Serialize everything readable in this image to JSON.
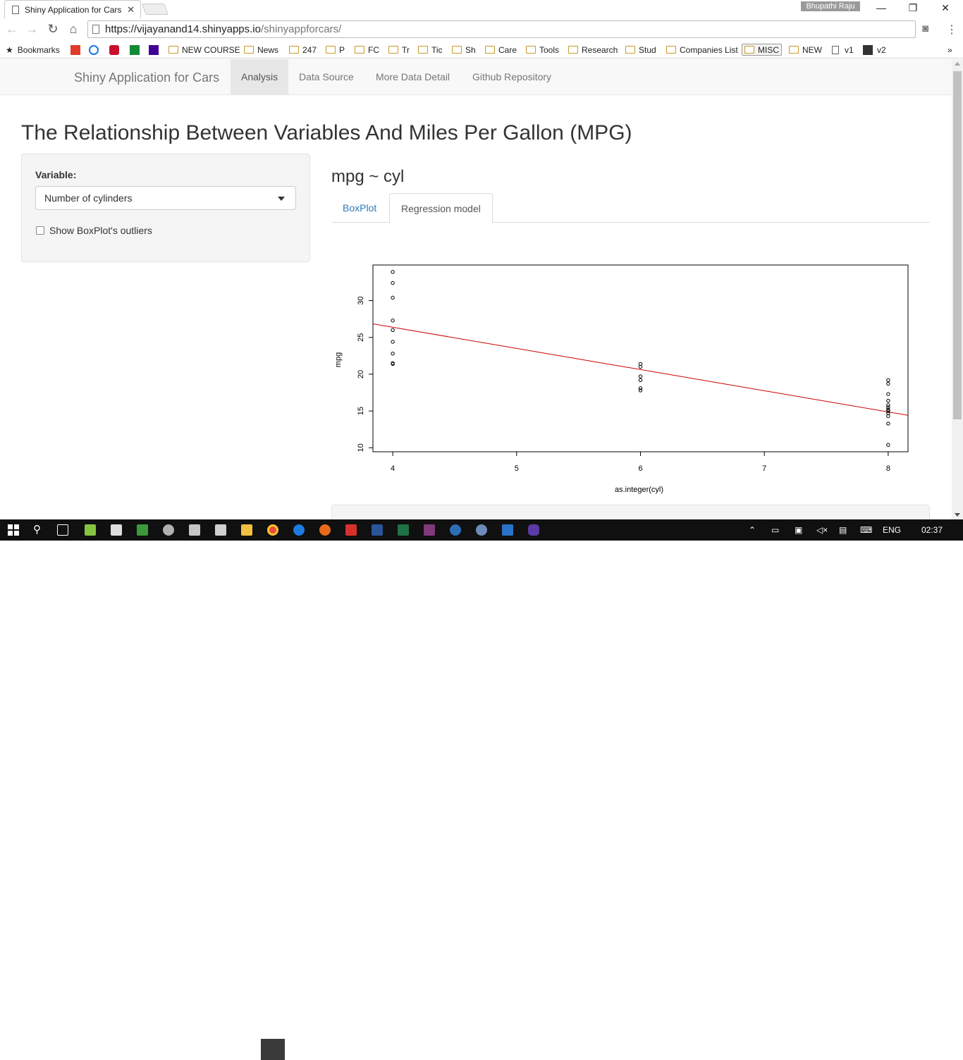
{
  "browser": {
    "tab_title": "Shiny Application for Cars",
    "profile_name": "Bhupathi Raju",
    "url_host": "https://vijayanand14.shinyapps.io",
    "url_path": "/shinyappforcars/",
    "bookmarks": [
      "Bookmarks",
      "NEW COURSE",
      "News",
      "247",
      "P",
      "FC",
      "Tr",
      "Tic",
      "Sh",
      "Care",
      "Tools",
      "Research",
      "Stud",
      "Companies List",
      "MISC",
      "NEW",
      "v1",
      "v2"
    ]
  },
  "navbar": {
    "brand": "Shiny Application for Cars",
    "items": [
      "Analysis",
      "Data Source",
      "More Data Detail",
      "Github Repository"
    ],
    "active": "Analysis"
  },
  "page": {
    "title": "The Relationship Between Variables And Miles Per Gallon (MPG)"
  },
  "sidebar": {
    "variable_label": "Variable:",
    "selected_variable": "Number of cylinders",
    "outliers_checkbox_label": "Show BoxPlot's outliers",
    "outliers_checked": false
  },
  "main": {
    "formula": "mpg ~ cyl",
    "tabs": [
      "BoxPlot",
      "Regression model"
    ],
    "active_tab": "Regression model"
  },
  "chart_data": {
    "type": "scatter",
    "xlabel": "as.integer(cyl)",
    "ylabel": "mpg",
    "x_ticks": [
      4,
      5,
      6,
      7,
      8
    ],
    "y_ticks": [
      10,
      15,
      20,
      25,
      30
    ],
    "xlim": [
      3.84,
      8.16
    ],
    "ylim": [
      9.46,
      34.84
    ],
    "points": [
      {
        "x": 4,
        "y": 33.9
      },
      {
        "x": 4,
        "y": 32.4
      },
      {
        "x": 4,
        "y": 30.4
      },
      {
        "x": 4,
        "y": 27.3
      },
      {
        "x": 4,
        "y": 26.0
      },
      {
        "x": 4,
        "y": 24.4
      },
      {
        "x": 4,
        "y": 22.8
      },
      {
        "x": 4,
        "y": 21.5
      },
      {
        "x": 4,
        "y": 21.4
      },
      {
        "x": 6,
        "y": 21.4
      },
      {
        "x": 6,
        "y": 21.0
      },
      {
        "x": 6,
        "y": 19.7
      },
      {
        "x": 6,
        "y": 19.2
      },
      {
        "x": 6,
        "y": 18.1
      },
      {
        "x": 6,
        "y": 17.8
      },
      {
        "x": 8,
        "y": 19.2
      },
      {
        "x": 8,
        "y": 18.7
      },
      {
        "x": 8,
        "y": 17.3
      },
      {
        "x": 8,
        "y": 16.4
      },
      {
        "x": 8,
        "y": 15.8
      },
      {
        "x": 8,
        "y": 15.5
      },
      {
        "x": 8,
        "y": 15.2
      },
      {
        "x": 8,
        "y": 15.0
      },
      {
        "x": 8,
        "y": 14.7
      },
      {
        "x": 8,
        "y": 14.3
      },
      {
        "x": 8,
        "y": 13.3
      },
      {
        "x": 8,
        "y": 10.4
      }
    ],
    "regression_line": {
      "intercept": 37.885,
      "slope": -2.876,
      "color": "#cc0000"
    },
    "point_color": "#000000"
  },
  "taskbar": {
    "language": "ENG",
    "time": "02:37"
  }
}
